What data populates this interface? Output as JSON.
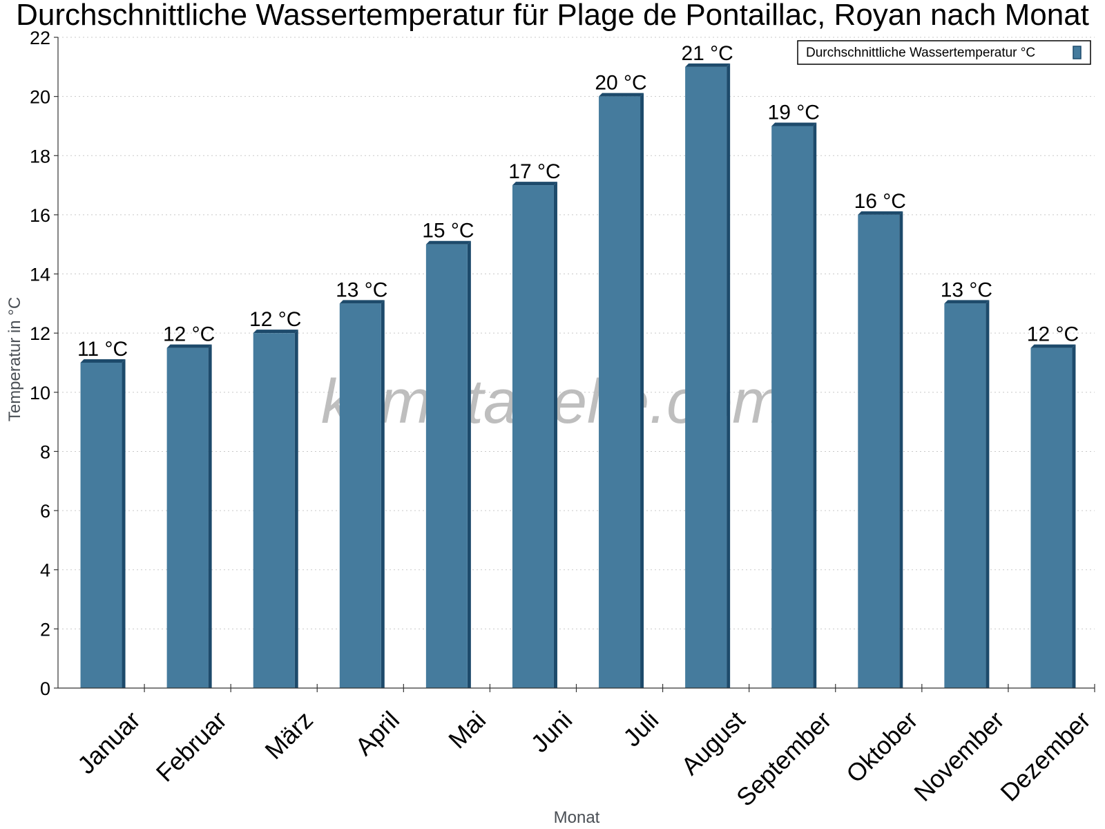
{
  "chart_data": {
    "type": "bar",
    "title": "Durchschnittliche Wassertemperatur für Plage de Pontaillac, Royan nach Monat",
    "xlabel": "Monat",
    "ylabel": "Temperatur in °C",
    "ylim": [
      0,
      22
    ],
    "yticks": [
      0,
      2,
      4,
      6,
      8,
      10,
      12,
      14,
      16,
      18,
      20,
      22
    ],
    "grid": true,
    "legend_position": "top-right",
    "categories": [
      "Januar",
      "Februar",
      "März",
      "April",
      "Mai",
      "Juni",
      "Juli",
      "August",
      "September",
      "Oktober",
      "November",
      "Dezember"
    ],
    "series": [
      {
        "name": "Durchschnittliche Wassertemperatur °C",
        "values": [
          11,
          11.5,
          12,
          13,
          15,
          17,
          20,
          21,
          19,
          16,
          13,
          11.5
        ],
        "data_labels": [
          "11 °C",
          "12 °C",
          "12 °C",
          "13 °C",
          "15 °C",
          "17 °C",
          "20 °C",
          "21 °C",
          "19 °C",
          "16 °C",
          "13 °C",
          "12 °C"
        ],
        "color": "#457b9d",
        "edge_color": "#1d4a6b"
      }
    ],
    "watermark": "klimatabelle.com"
  }
}
